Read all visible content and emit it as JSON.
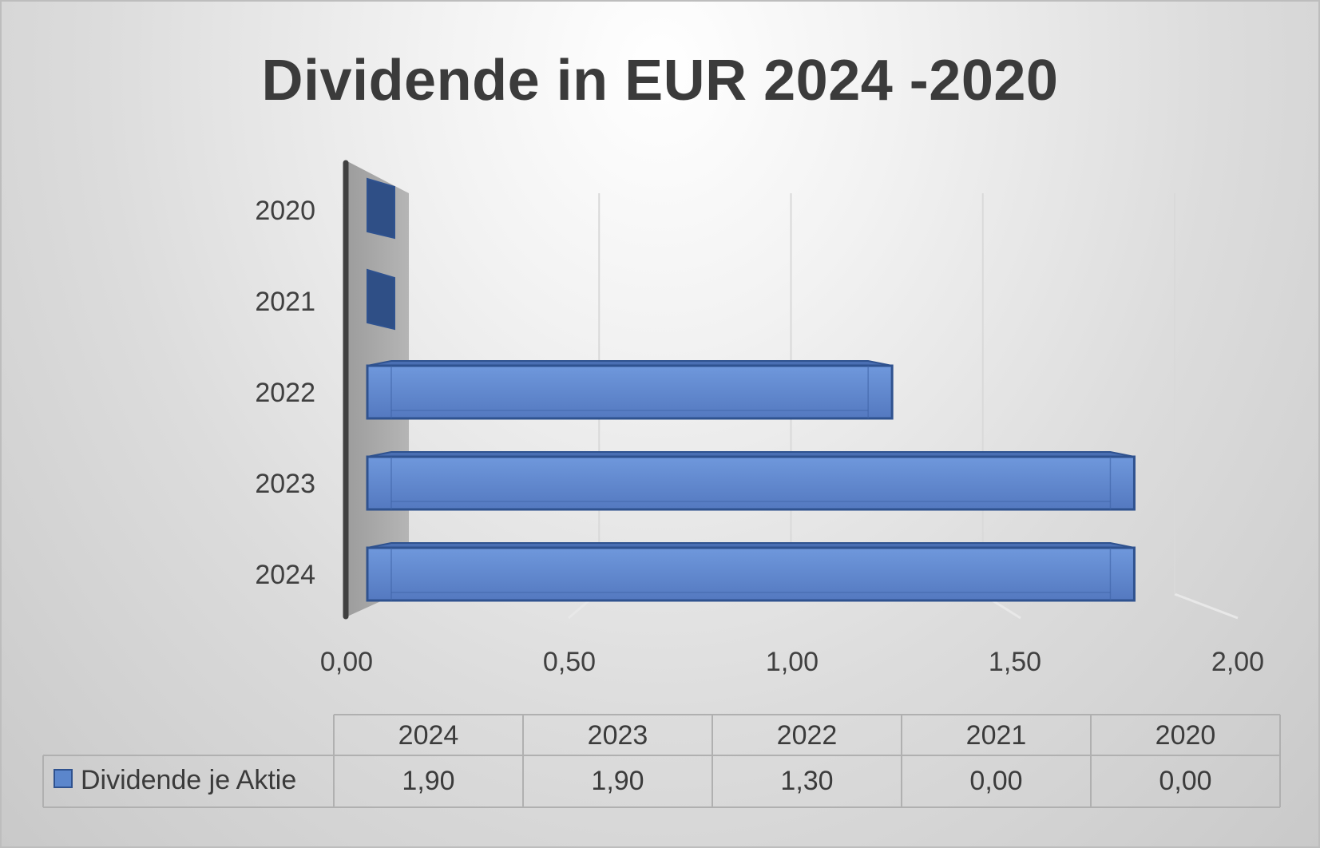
{
  "chart_data": {
    "type": "bar",
    "orientation": "horizontal",
    "style": "3d",
    "title": "Dividende in EUR 2024 -2020",
    "categories": [
      "2024",
      "2023",
      "2022",
      "2021",
      "2020"
    ],
    "series": [
      {
        "name": "Dividende je Aktie",
        "values": [
          1.9,
          1.9,
          1.3,
          0.0,
          0.0
        ],
        "color": "#5b86cc"
      }
    ],
    "x_ticks": [
      "0,00",
      "0,50",
      "1,00",
      "1,50",
      "2,00"
    ],
    "xlim": [
      0,
      2
    ],
    "grid": true,
    "data_table": {
      "headers": [
        "2024",
        "2023",
        "2022",
        "2021",
        "2020"
      ],
      "row_label": "Dividende je Aktie",
      "values": [
        "1,90",
        "1,90",
        "1,30",
        "0,00",
        "0,00"
      ]
    }
  },
  "colors": {
    "bar_fill": "#5b86cc",
    "bar_edge": "#2f528f",
    "wall": "#a6a6a6",
    "axis": "#404040",
    "title": "#3b3b3b"
  }
}
